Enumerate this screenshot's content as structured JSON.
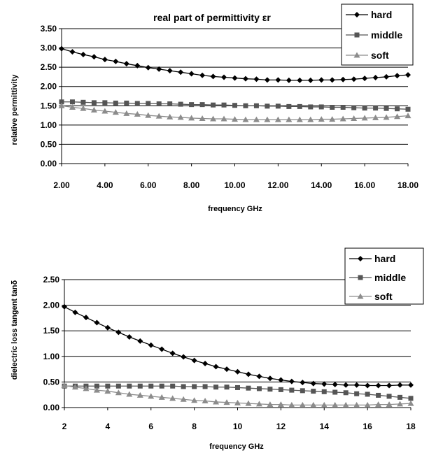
{
  "chart_data": [
    {
      "type": "line",
      "title": "real part of permittivity εr",
      "xlabel": "frequency GHz",
      "ylabel": "relative permittivity",
      "xlim": [
        2,
        18
      ],
      "ylim": [
        0,
        3.5
      ],
      "x_ticks": [
        "2.00",
        "4.00",
        "6.00",
        "8.00",
        "10.00",
        "12.00",
        "14.00",
        "16.00",
        "18.00"
      ],
      "y_ticks": [
        "0.00",
        "0.50",
        "1.00",
        "1.50",
        "2.00",
        "2.50",
        "3.00",
        "3.50"
      ],
      "grid": "horizontal",
      "legend_position": "top-right",
      "x": [
        2,
        2.5,
        3,
        3.5,
        4,
        4.5,
        5,
        5.5,
        6,
        6.5,
        7,
        7.5,
        8,
        8.5,
        9,
        9.5,
        10,
        10.5,
        11,
        11.5,
        12,
        12.5,
        13,
        13.5,
        14,
        14.5,
        15,
        15.5,
        16,
        16.5,
        17,
        17.5,
        18
      ],
      "series": [
        {
          "name": "hard",
          "marker": "diamond",
          "values": [
            2.98,
            2.9,
            2.83,
            2.77,
            2.7,
            2.65,
            2.59,
            2.54,
            2.49,
            2.45,
            2.41,
            2.37,
            2.33,
            2.29,
            2.26,
            2.24,
            2.22,
            2.2,
            2.19,
            2.17,
            2.17,
            2.16,
            2.16,
            2.16,
            2.17,
            2.17,
            2.18,
            2.19,
            2.21,
            2.23,
            2.25,
            2.28,
            2.3
          ]
        },
        {
          "name": "middle",
          "marker": "square",
          "values": [
            1.6,
            1.6,
            1.59,
            1.58,
            1.58,
            1.57,
            1.57,
            1.56,
            1.56,
            1.55,
            1.55,
            1.54,
            1.53,
            1.53,
            1.52,
            1.52,
            1.51,
            1.5,
            1.5,
            1.49,
            1.49,
            1.48,
            1.48,
            1.47,
            1.47,
            1.46,
            1.46,
            1.45,
            1.44,
            1.44,
            1.43,
            1.42,
            1.41
          ]
        },
        {
          "name": "soft",
          "marker": "triangle",
          "values": [
            1.5,
            1.46,
            1.43,
            1.39,
            1.36,
            1.33,
            1.3,
            1.28,
            1.25,
            1.23,
            1.21,
            1.2,
            1.18,
            1.17,
            1.16,
            1.16,
            1.15,
            1.14,
            1.14,
            1.14,
            1.14,
            1.14,
            1.14,
            1.14,
            1.15,
            1.15,
            1.16,
            1.17,
            1.18,
            1.19,
            1.2,
            1.22,
            1.24
          ]
        }
      ]
    },
    {
      "type": "line",
      "title": "",
      "xlabel": "frequency GHz",
      "ylabel": "dielectric loss tangent tanδ",
      "xlim": [
        2,
        18
      ],
      "ylim": [
        0,
        2.5
      ],
      "x_ticks": [
        "2",
        "4",
        "6",
        "8",
        "10",
        "12",
        "14",
        "16",
        "18"
      ],
      "y_ticks": [
        "0.00",
        "0.50",
        "1.00",
        "1.50",
        "2.00",
        "2.50"
      ],
      "grid": "horizontal",
      "legend_position": "top-right",
      "x": [
        2,
        2.5,
        3,
        3.5,
        4,
        4.5,
        5,
        5.5,
        6,
        6.5,
        7,
        7.5,
        8,
        8.5,
        9,
        9.5,
        10,
        10.5,
        11,
        11.5,
        12,
        12.5,
        13,
        13.5,
        14,
        14.5,
        15,
        15.5,
        16,
        16.5,
        17,
        17.5,
        18
      ],
      "series": [
        {
          "name": "hard",
          "marker": "diamond",
          "values": [
            1.97,
            1.86,
            1.76,
            1.66,
            1.56,
            1.47,
            1.38,
            1.3,
            1.22,
            1.14,
            1.06,
            0.99,
            0.92,
            0.86,
            0.8,
            0.75,
            0.7,
            0.65,
            0.61,
            0.57,
            0.54,
            0.51,
            0.49,
            0.47,
            0.46,
            0.45,
            0.44,
            0.44,
            0.43,
            0.43,
            0.43,
            0.44,
            0.44
          ]
        },
        {
          "name": "middle",
          "marker": "square",
          "values": [
            0.42,
            0.42,
            0.42,
            0.42,
            0.42,
            0.42,
            0.42,
            0.42,
            0.42,
            0.42,
            0.42,
            0.41,
            0.41,
            0.41,
            0.4,
            0.4,
            0.39,
            0.38,
            0.37,
            0.36,
            0.35,
            0.34,
            0.33,
            0.32,
            0.31,
            0.3,
            0.29,
            0.27,
            0.26,
            0.24,
            0.22,
            0.2,
            0.18
          ]
        },
        {
          "name": "soft",
          "marker": "triangle",
          "values": [
            0.43,
            0.4,
            0.37,
            0.34,
            0.32,
            0.29,
            0.26,
            0.24,
            0.22,
            0.2,
            0.18,
            0.16,
            0.14,
            0.13,
            0.11,
            0.1,
            0.09,
            0.08,
            0.07,
            0.06,
            0.06,
            0.05,
            0.05,
            0.05,
            0.05,
            0.05,
            0.05,
            0.05,
            0.05,
            0.06,
            0.06,
            0.07,
            0.08
          ]
        }
      ]
    }
  ]
}
